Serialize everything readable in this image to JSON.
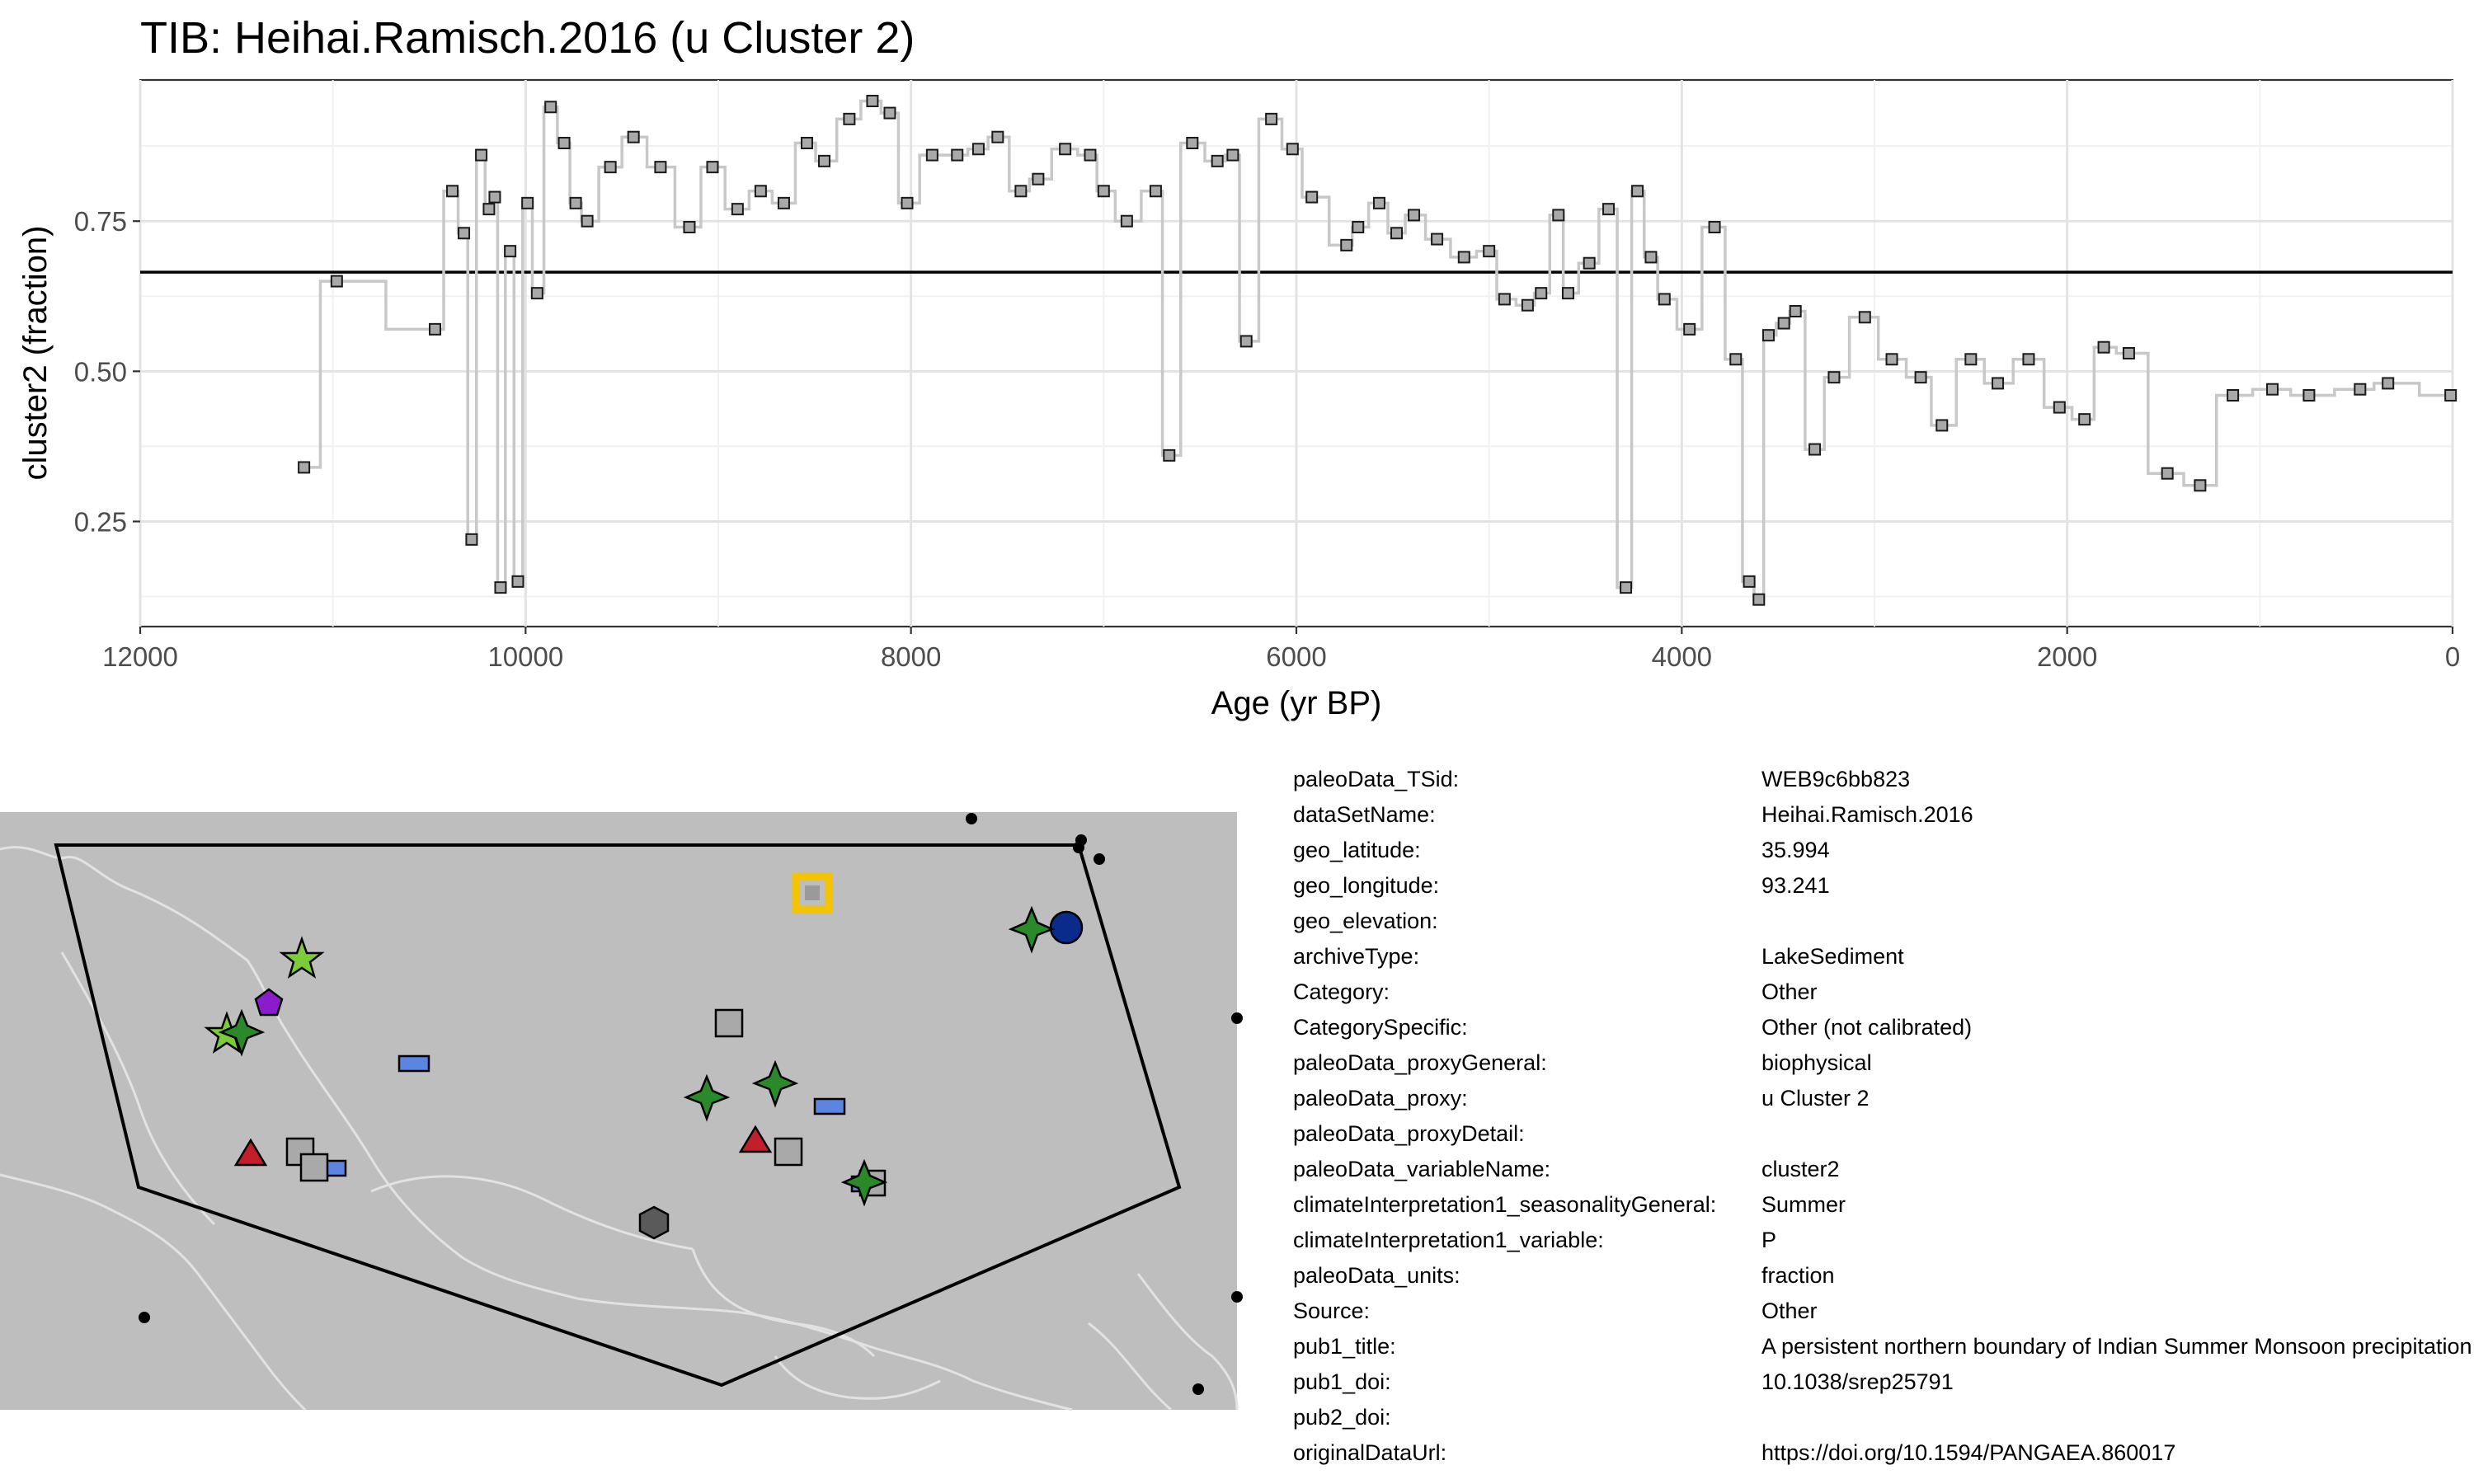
{
  "title": "TIB: Heihai.Ramisch.2016 (u Cluster 2)",
  "chart_data": {
    "type": "line",
    "step": true,
    "title": "TIB: Heihai.Ramisch.2016 (u Cluster 2)",
    "xlabel": "Age (yr BP)",
    "ylabel": "cluster2 (fraction)",
    "x_reversed": true,
    "xlim": [
      12000,
      0
    ],
    "ylim": [
      0.075,
      0.985
    ],
    "xticks": [
      12000,
      10000,
      8000,
      6000,
      4000,
      2000,
      0
    ],
    "xtick_labels": [
      "12000",
      "10000",
      "8000",
      "6000",
      "4000",
      "2000",
      "0"
    ],
    "yticks": [
      0.25,
      0.5,
      0.75
    ],
    "ytick_labels": [
      "0.25",
      "0.50",
      "0.75"
    ],
    "grid": true,
    "hline": 0.665,
    "series": [
      {
        "x": [
          11150,
          10980,
          10470,
          10380,
          10320,
          10280,
          10230,
          10190,
          10160,
          10130,
          10080,
          10040,
          9990,
          9940,
          9870,
          9800,
          9740,
          9680,
          9560,
          9440,
          9300,
          9150,
          9030,
          8900,
          8780,
          8660,
          8540,
          8450,
          8320,
          8200,
          8110,
          8020,
          7890,
          7760,
          7650,
          7550,
          7430,
          7340,
          7200,
          7070,
          7000,
          6880,
          6730,
          6660,
          6540,
          6410,
          6330,
          6260,
          6130,
          6020,
          5920,
          5740,
          5680,
          5570,
          5480,
          5390,
          5270,
          5130,
          5000,
          4920,
          4800,
          4730,
          4640,
          4590,
          4480,
          4380,
          4290,
          4230,
          4160,
          4090,
          3960,
          3830,
          3720,
          3650,
          3600,
          3550,
          3470,
          3410,
          3310,
          3210,
          3050,
          2910,
          2760,
          2650,
          2500,
          2360,
          2200,
          2040,
          1910,
          1810,
          1680,
          1480,
          1310,
          1140,
          935,
          745,
          480,
          335,
          10
        ],
        "y": [
          0.34,
          0.65,
          0.57,
          0.8,
          0.73,
          0.22,
          0.86,
          0.77,
          0.79,
          0.14,
          0.7,
          0.15,
          0.78,
          0.63,
          0.94,
          0.88,
          0.78,
          0.75,
          0.84,
          0.89,
          0.84,
          0.74,
          0.84,
          0.77,
          0.8,
          0.78,
          0.88,
          0.85,
          0.92,
          0.95,
          0.93,
          0.78,
          0.86,
          0.86,
          0.87,
          0.89,
          0.8,
          0.82,
          0.87,
          0.86,
          0.8,
          0.75,
          0.8,
          0.36,
          0.88,
          0.85,
          0.86,
          0.55,
          0.92,
          0.87,
          0.79,
          0.71,
          0.74,
          0.78,
          0.73,
          0.76,
          0.72,
          0.69,
          0.7,
          0.62,
          0.61,
          0.63,
          0.76,
          0.63,
          0.68,
          0.77,
          0.14,
          0.8,
          0.69,
          0.62,
          0.57,
          0.74,
          0.52,
          0.15,
          0.12,
          0.56,
          0.58,
          0.6,
          0.37,
          0.49,
          0.59,
          0.52,
          0.49,
          0.41,
          0.52,
          0.48,
          0.52,
          0.44,
          0.42,
          0.54,
          0.53,
          0.33,
          0.31,
          0.46,
          0.47,
          0.46,
          0.47,
          0.48,
          0.46
        ]
      }
    ]
  },
  "map": {
    "background": "#bebebe",
    "region_outline": "black"
  },
  "metadata": [
    {
      "key": "paleoData_TSid:",
      "value": "WEB9c6bb823"
    },
    {
      "key": "dataSetName:",
      "value": "Heihai.Ramisch.2016"
    },
    {
      "key": "geo_latitude:",
      "value": "35.994"
    },
    {
      "key": "geo_longitude:",
      "value": "93.241"
    },
    {
      "key": "geo_elevation:",
      "value": ""
    },
    {
      "key": "archiveType:",
      "value": "LakeSediment"
    },
    {
      "key": "Category:",
      "value": "Other"
    },
    {
      "key": "CategorySpecific:",
      "value": "Other (not calibrated)"
    },
    {
      "key": "paleoData_proxyGeneral:",
      "value": "biophysical"
    },
    {
      "key": "paleoData_proxy:",
      "value": "u Cluster 2"
    },
    {
      "key": "paleoData_proxyDetail:",
      "value": ""
    },
    {
      "key": "paleoData_variableName:",
      "value": "cluster2"
    },
    {
      "key": "climateInterpretation1_seasonalityGeneral:",
      "value": "Summer"
    },
    {
      "key": "climateInterpretation1_variable:",
      "value": "P"
    },
    {
      "key": "paleoData_units:",
      "value": "fraction"
    },
    {
      "key": "Source:",
      "value": "Other"
    },
    {
      "key": "pub1_title:",
      "value": "A persistent northern boundary of Indian Summer Monsoon precipitation"
    },
    {
      "key": "pub1_doi:",
      "value": "10.1038/srep25791"
    },
    {
      "key": "pub2_doi:",
      "value": ""
    },
    {
      "key": "originalDataUrl:",
      "value": "https://doi.org/10.1594/PANGAEA.860017"
    }
  ]
}
